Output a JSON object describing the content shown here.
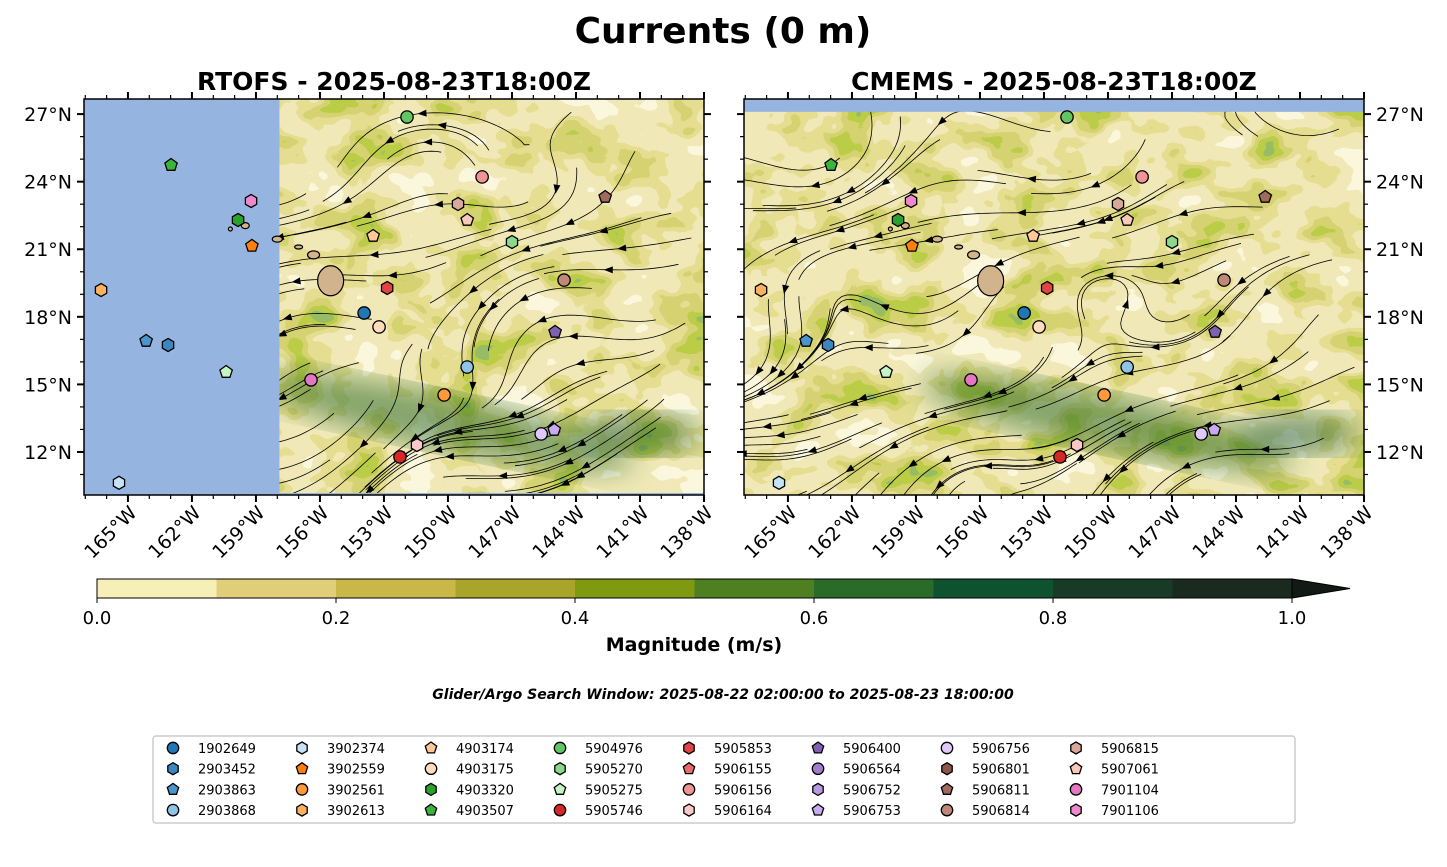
{
  "title": "Currents (0 m)",
  "panels": [
    {
      "title": "RTOFS - 2025-08-23T18:00Z",
      "land_west_of_lon": -157.9,
      "seed": 3
    },
    {
      "title": "CMEMS - 2025-08-23T18:00Z",
      "land_north_of_lat": 27.1,
      "seed": 11
    }
  ],
  "map_extent": {
    "lon": [
      -167.06,
      -138.0
    ],
    "lat": [
      10.09,
      27.67
    ]
  },
  "lon_ticks": [
    {
      "value": -165,
      "label": "165°W"
    },
    {
      "value": -162,
      "label": "162°W"
    },
    {
      "value": -159,
      "label": "159°W"
    },
    {
      "value": -156,
      "label": "156°W"
    },
    {
      "value": -153,
      "label": "153°W"
    },
    {
      "value": -150,
      "label": "150°W"
    },
    {
      "value": -147,
      "label": "147°W"
    },
    {
      "value": -144,
      "label": "144°W"
    },
    {
      "value": -141,
      "label": "141°W"
    },
    {
      "value": -138,
      "label": "138°W"
    }
  ],
  "lat_ticks": [
    {
      "value": 12,
      "label": "12°N"
    },
    {
      "value": 15,
      "label": "15°N"
    },
    {
      "value": 18,
      "label": "18°N"
    },
    {
      "value": 21,
      "label": "21°N"
    },
    {
      "value": 24,
      "label": "24°N"
    },
    {
      "value": 27,
      "label": "27°N"
    }
  ],
  "colorbar": {
    "label": "Magnitude (m/s)",
    "ticks": [
      "0.0",
      "0.2",
      "0.4",
      "0.6",
      "0.8",
      "1.0"
    ],
    "levels": [
      0,
      0.1,
      0.2,
      0.3,
      0.4,
      0.5,
      0.6,
      0.7,
      0.8,
      0.9,
      1.0
    ],
    "colors": [
      "#f7efb8",
      "#e0cf78",
      "#c9b848",
      "#a8a52a",
      "#7f9a10",
      "#4e8022",
      "#2a6b2a",
      "#0f5230",
      "#1a3a28",
      "#1b2a1e"
    ],
    "extend_color": "#111a14"
  },
  "ocean_color": "#96b4e0",
  "land_color": "#d2b48c",
  "search_window": "Glider/Argo Search Window: 2025-08-22 02:00:00 to 2025-08-23 18:00:00",
  "legend": [
    {
      "id": "1902649",
      "shape": "circle",
      "color": "#1f77b4"
    },
    {
      "id": "2903452",
      "shape": "hexagon",
      "color": "#3a86c0"
    },
    {
      "id": "2903863",
      "shape": "pentagon",
      "color": "#4a95cc"
    },
    {
      "id": "2903868",
      "shape": "circle",
      "color": "#8fc4e8"
    },
    {
      "id": "3902374",
      "shape": "hexagon",
      "color": "#c6e2f5"
    },
    {
      "id": "3902559",
      "shape": "pentagon",
      "color": "#ff7f0e"
    },
    {
      "id": "3902561",
      "shape": "circle",
      "color": "#ff9a3a"
    },
    {
      "id": "3902613",
      "shape": "hexagon",
      "color": "#ffb061"
    },
    {
      "id": "4903174",
      "shape": "pentagon",
      "color": "#ffc896"
    },
    {
      "id": "4903175",
      "shape": "circle",
      "color": "#ffdcbc"
    },
    {
      "id": "4903320",
      "shape": "hexagon",
      "color": "#2ca02c"
    },
    {
      "id": "4903507",
      "shape": "pentagon",
      "color": "#3cb43c"
    },
    {
      "id": "5904976",
      "shape": "circle",
      "color": "#62c462"
    },
    {
      "id": "5905270",
      "shape": "hexagon",
      "color": "#8ad88a"
    },
    {
      "id": "5905275",
      "shape": "pentagon",
      "color": "#c4f5c4"
    },
    {
      "id": "5905746",
      "shape": "circle",
      "color": "#d62728"
    },
    {
      "id": "5905853",
      "shape": "hexagon",
      "color": "#e04444"
    },
    {
      "id": "5906155",
      "shape": "pentagon",
      "color": "#e86a6a"
    },
    {
      "id": "5906156",
      "shape": "circle",
      "color": "#f09494"
    },
    {
      "id": "5906164",
      "shape": "hexagon",
      "color": "#ffc8c8"
    },
    {
      "id": "5906400",
      "shape": "pentagon",
      "color": "#8060b0"
    },
    {
      "id": "5906564",
      "shape": "circle",
      "color": "#a07ccc"
    },
    {
      "id": "5906752",
      "shape": "hexagon",
      "color": "#b898e0"
    },
    {
      "id": "5906753",
      "shape": "pentagon",
      "color": "#c9aaf0"
    },
    {
      "id": "5906756",
      "shape": "circle",
      "color": "#e0c8fa"
    },
    {
      "id": "5906801",
      "shape": "hexagon",
      "color": "#8c564b"
    },
    {
      "id": "5906811",
      "shape": "pentagon",
      "color": "#a06a5c"
    },
    {
      "id": "5906814",
      "shape": "circle",
      "color": "#c08878"
    },
    {
      "id": "5906815",
      "shape": "hexagon",
      "color": "#d8a898"
    },
    {
      "id": "5907061",
      "shape": "pentagon",
      "color": "#f8c8b8"
    },
    {
      "id": "7901104",
      "shape": "circle",
      "color": "#e377c2"
    },
    {
      "id": "7901106",
      "shape": "hexagon",
      "color": "#ee88cc"
    }
  ],
  "floats": [
    {
      "id": "5904976",
      "lon": -151.92,
      "lat": 26.87
    },
    {
      "id": "4903507",
      "lon": -162.98,
      "lat": 24.74
    },
    {
      "id": "7901106",
      "lon": -159.23,
      "lat": 23.14
    },
    {
      "id": "5906156",
      "lon": -148.4,
      "lat": 24.21
    },
    {
      "id": "5906811",
      "lon": -142.63,
      "lat": 23.32
    },
    {
      "id": "5906815",
      "lon": -149.53,
      "lat": 23.01
    },
    {
      "id": "5907061",
      "lon": -149.1,
      "lat": 22.3
    },
    {
      "id": "4903320",
      "lon": -159.84,
      "lat": 22.3
    },
    {
      "id": "4903174",
      "lon": -153.51,
      "lat": 21.59
    },
    {
      "id": "3902559",
      "lon": -159.19,
      "lat": 21.15
    },
    {
      "id": "5905270",
      "lon": -147.0,
      "lat": 21.32
    },
    {
      "id": "5906814",
      "lon": -144.56,
      "lat": 19.63
    },
    {
      "id": "3902613",
      "lon": -166.26,
      "lat": 19.19
    },
    {
      "id": "5905853",
      "lon": -152.85,
      "lat": 19.28
    },
    {
      "id": "1902649",
      "lon": -153.93,
      "lat": 18.17
    },
    {
      "id": "4903175",
      "lon": -153.23,
      "lat": 17.55
    },
    {
      "id": "5906400",
      "lon": -144.98,
      "lat": 17.33
    },
    {
      "id": "2903863",
      "lon": -164.15,
      "lat": 16.93
    },
    {
      "id": "2903452",
      "lon": -163.12,
      "lat": 16.75
    },
    {
      "id": "5905275",
      "lon": -160.4,
      "lat": 15.55
    },
    {
      "id": "7901104",
      "lon": -156.42,
      "lat": 15.2
    },
    {
      "id": "2903868",
      "lon": -149.1,
      "lat": 15.77
    },
    {
      "id": "3902561",
      "lon": -150.18,
      "lat": 14.53
    },
    {
      "id": "5906753",
      "lon": -145.02,
      "lat": 12.98
    },
    {
      "id": "5906756",
      "lon": -145.63,
      "lat": 12.8
    },
    {
      "id": "5906164",
      "lon": -151.45,
      "lat": 12.31
    },
    {
      "id": "5905746",
      "lon": -152.25,
      "lat": 11.78
    },
    {
      "id": "3902374",
      "lon": -165.42,
      "lat": 10.63
    }
  ]
}
